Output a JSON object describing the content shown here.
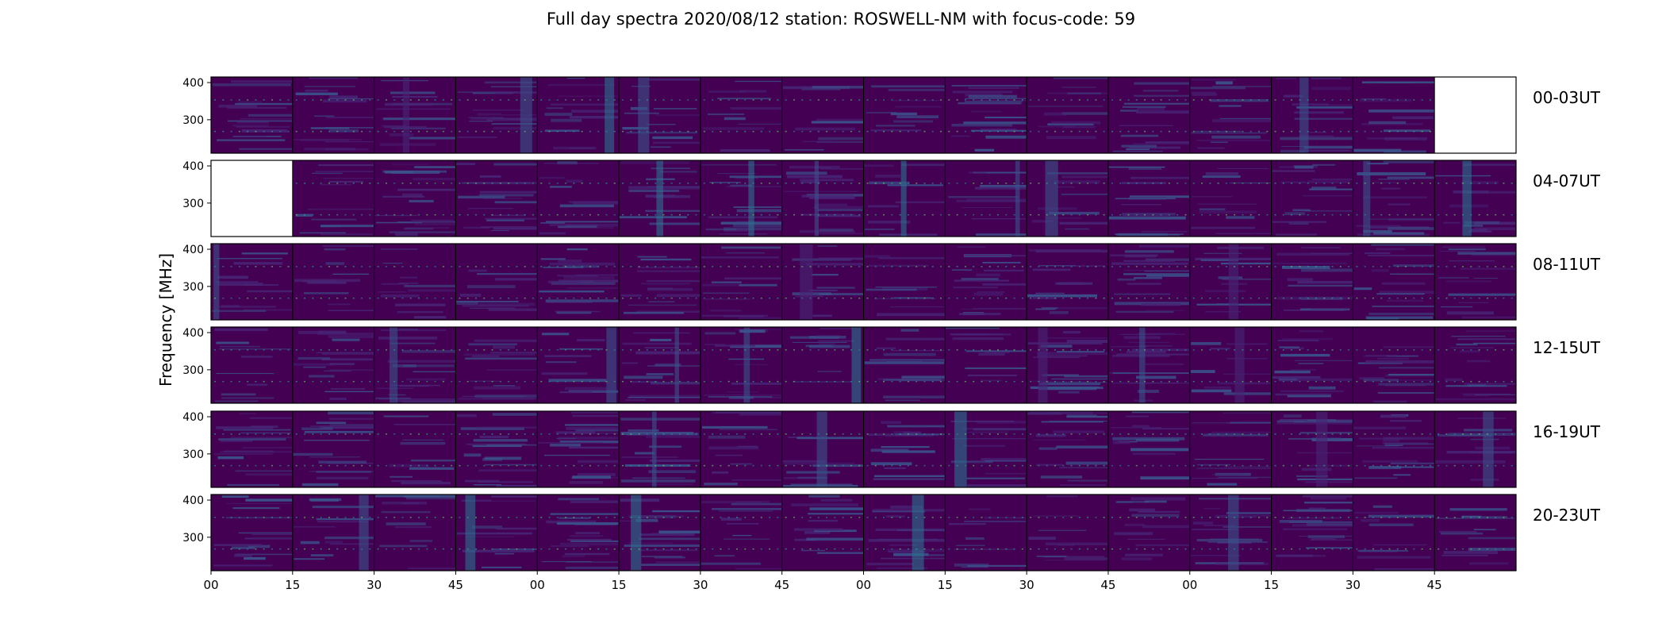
{
  "chart_data": {
    "type": "heatmap",
    "title": "Full day spectra 2020/08/12 station: ROSWELL-NM with focus-code: 59",
    "ylabel": "Frequency [MHz]",
    "ylim": [
      210,
      415
    ],
    "y_ticks": [
      "400",
      "300"
    ],
    "x_ticks": [
      "00",
      "15",
      "30",
      "45",
      "00",
      "15",
      "30",
      "45",
      "00",
      "15",
      "30",
      "45",
      "00",
      "15",
      "30",
      "45"
    ],
    "colormap": [
      "#440154",
      "#482475",
      "#3b528b",
      "#2c728e",
      "#21918c",
      "#27ad81",
      "#5ec962",
      "#aadc32",
      "#fde725"
    ],
    "rows": [
      {
        "label": "00-03UT",
        "missing_cells": [
          15
        ]
      },
      {
        "label": "04-07UT",
        "missing_cells": [
          0
        ]
      },
      {
        "label": "08-11UT",
        "missing_cells": []
      },
      {
        "label": "12-15UT",
        "missing_cells": []
      },
      {
        "label": "16-19UT",
        "missing_cells": []
      },
      {
        "label": "20-23UT",
        "missing_cells": []
      }
    ],
    "cells_per_row": 16,
    "cell_minutes": 15
  }
}
